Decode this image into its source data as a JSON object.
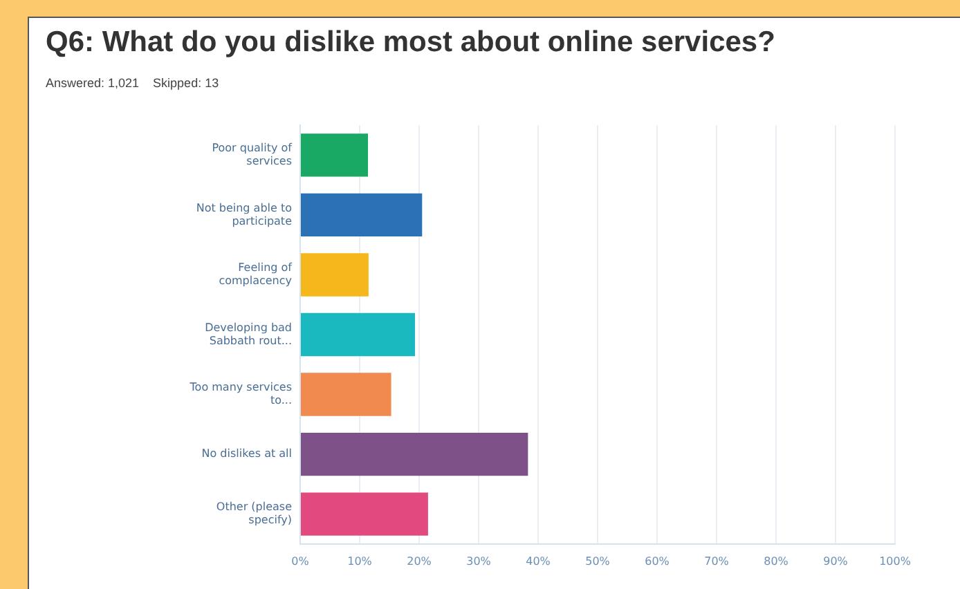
{
  "chart_data": {
    "type": "bar",
    "orientation": "horizontal",
    "title": "Q6: What do you dislike most about online services?",
    "subtitle": "Answered: 1,021    Skipped: 13",
    "categories": [
      "Poor quality of services",
      "Not being able to participate",
      "Feeling of complacency",
      "Developing bad Sabbath rout...",
      "Too many services to...",
      "No dislikes at all",
      "Other (please specify)"
    ],
    "values": [
      11.4,
      20.5,
      11.5,
      19.3,
      15.3,
      38.3,
      21.5
    ],
    "colors": [
      "#1aa865",
      "#2a72b5",
      "#f6b71c",
      "#1ab9bf",
      "#f08a4f",
      "#7e5189",
      "#e2497f"
    ],
    "xlim": [
      0,
      100
    ],
    "xticks": [
      {
        "value": 0,
        "label": "0%"
      },
      {
        "value": 10,
        "label": "10%"
      },
      {
        "value": 20,
        "label": "20%"
      },
      {
        "value": 30,
        "label": "30%"
      },
      {
        "value": 40,
        "label": "40%"
      },
      {
        "value": 50,
        "label": "50%"
      },
      {
        "value": 60,
        "label": "60%"
      },
      {
        "value": 70,
        "label": "70%"
      },
      {
        "value": 80,
        "label": "80%"
      },
      {
        "value": 90,
        "label": "90%"
      },
      {
        "value": 100,
        "label": "100%"
      }
    ],
    "grid": "x",
    "legend": false
  }
}
